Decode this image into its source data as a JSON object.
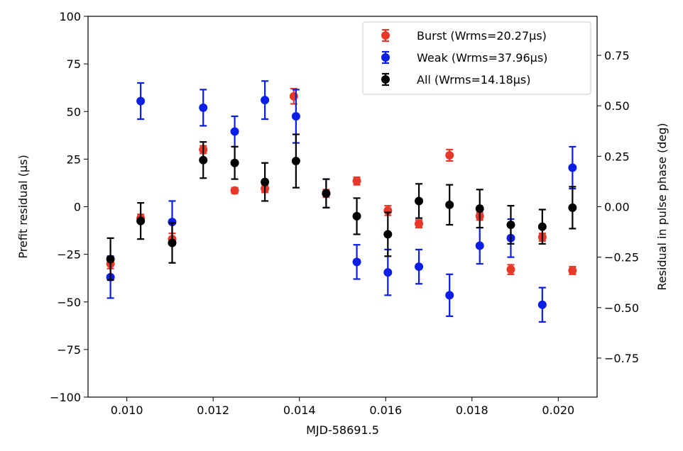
{
  "chart_data": {
    "type": "scatter",
    "xlabel": "MJD-58691.5",
    "ylabel": "Prefit residual (μs)",
    "ylabel_right": "Residual in pulse phase (deg)",
    "xlim": [
      0.0091,
      0.0209
    ],
    "ylim": [
      -100,
      100
    ],
    "xticks": [
      0.01,
      0.012,
      0.014,
      0.016,
      0.018,
      0.02
    ],
    "xtick_labels": [
      "0.010",
      "0.012",
      "0.014",
      "0.016",
      "0.018",
      "0.020"
    ],
    "yticks": [
      -100,
      -75,
      -50,
      -25,
      0,
      25,
      50,
      75,
      100
    ],
    "ytick_labels": [
      "−100",
      "−75",
      "−50",
      "−25",
      "0",
      "25",
      "50",
      "75",
      "100"
    ],
    "y2lim": [
      -0.9434,
      0.9434
    ],
    "y2ticks": [
      -0.75,
      -0.5,
      -0.25,
      0.0,
      0.25,
      0.5,
      0.75
    ],
    "y2tick_labels": [
      "−0.75",
      "−0.50",
      "−0.25",
      "0.00",
      "0.25",
      "0.50",
      "0.75"
    ],
    "grid": false,
    "legend": {
      "placement": "top-right"
    },
    "series": [
      {
        "name": "Burst (Wrms=20.27μs)",
        "color": "#e8382a",
        "points": [
          {
            "x": 0.00962,
            "y": -30,
            "err": 2.5
          },
          {
            "x": 0.01032,
            "y": -6,
            "err": 2.0
          },
          {
            "x": 0.01105,
            "y": -17,
            "err": 3.0
          },
          {
            "x": 0.01177,
            "y": 30,
            "err": 2.0
          },
          {
            "x": 0.0125,
            "y": 8.5,
            "err": 1.5
          },
          {
            "x": 0.0132,
            "y": 9.5,
            "err": 2.0
          },
          {
            "x": 0.01387,
            "y": 58,
            "err": 4.0
          },
          {
            "x": 0.01462,
            "y": 7,
            "err": 2.0
          },
          {
            "x": 0.01533,
            "y": 13.5,
            "err": 2.0
          },
          {
            "x": 0.01605,
            "y": -2,
            "err": 2.5
          },
          {
            "x": 0.01677,
            "y": -9,
            "err": 2.0
          },
          {
            "x": 0.01748,
            "y": 27,
            "err": 3.0
          },
          {
            "x": 0.01818,
            "y": -5,
            "err": 2.0
          },
          {
            "x": 0.0189,
            "y": -33,
            "err": 2.5
          },
          {
            "x": 0.01963,
            "y": -16,
            "err": 2.0
          },
          {
            "x": 0.02033,
            "y": -33.5,
            "err": 2.0
          }
        ]
      },
      {
        "name": "Weak (Wrms=37.96μs)",
        "color": "#0a1ee8",
        "points": [
          {
            "x": 0.00962,
            "y": -37,
            "err": 11
          },
          {
            "x": 0.01032,
            "y": 55.5,
            "err": 9.5
          },
          {
            "x": 0.01105,
            "y": -8,
            "err": 11
          },
          {
            "x": 0.01177,
            "y": 52,
            "err": 9.5
          },
          {
            "x": 0.0125,
            "y": 39.5,
            "err": 8
          },
          {
            "x": 0.0132,
            "y": 56,
            "err": 10
          },
          {
            "x": 0.01392,
            "y": 47.5,
            "err": 14
          },
          {
            "x": 0.01462,
            "y": 7,
            "err": 7.5
          },
          {
            "x": 0.01533,
            "y": -29,
            "err": 9
          },
          {
            "x": 0.01605,
            "y": -34.5,
            "err": 12
          },
          {
            "x": 0.01677,
            "y": -31.5,
            "err": 9
          },
          {
            "x": 0.01748,
            "y": -46.5,
            "err": 11
          },
          {
            "x": 0.01818,
            "y": -20.5,
            "err": 9.5
          },
          {
            "x": 0.0189,
            "y": -16.5,
            "err": 10
          },
          {
            "x": 0.01963,
            "y": -51.5,
            "err": 9
          },
          {
            "x": 0.02033,
            "y": 20.5,
            "err": 11
          }
        ]
      },
      {
        "name": "All (Wrms=14.18μs)",
        "color": "#000000",
        "points": [
          {
            "x": 0.00962,
            "y": -27.5,
            "err": 11
          },
          {
            "x": 0.01032,
            "y": -7.5,
            "err": 9.5
          },
          {
            "x": 0.01105,
            "y": -19,
            "err": 10.5
          },
          {
            "x": 0.01177,
            "y": 24.5,
            "err": 9.5
          },
          {
            "x": 0.0125,
            "y": 23,
            "err": 8.5
          },
          {
            "x": 0.0132,
            "y": 13,
            "err": 10
          },
          {
            "x": 0.01392,
            "y": 24,
            "err": 14
          },
          {
            "x": 0.01462,
            "y": 7,
            "err": 7.5
          },
          {
            "x": 0.01533,
            "y": -5,
            "err": 9.5
          },
          {
            "x": 0.01605,
            "y": -14.5,
            "err": 11.5
          },
          {
            "x": 0.01677,
            "y": 3,
            "err": 9
          },
          {
            "x": 0.01748,
            "y": 1,
            "err": 10.5
          },
          {
            "x": 0.01818,
            "y": -1,
            "err": 10
          },
          {
            "x": 0.0189,
            "y": -9.5,
            "err": 10
          },
          {
            "x": 0.01963,
            "y": -10.5,
            "err": 9
          },
          {
            "x": 0.02033,
            "y": -0.5,
            "err": 11
          }
        ]
      }
    ]
  }
}
